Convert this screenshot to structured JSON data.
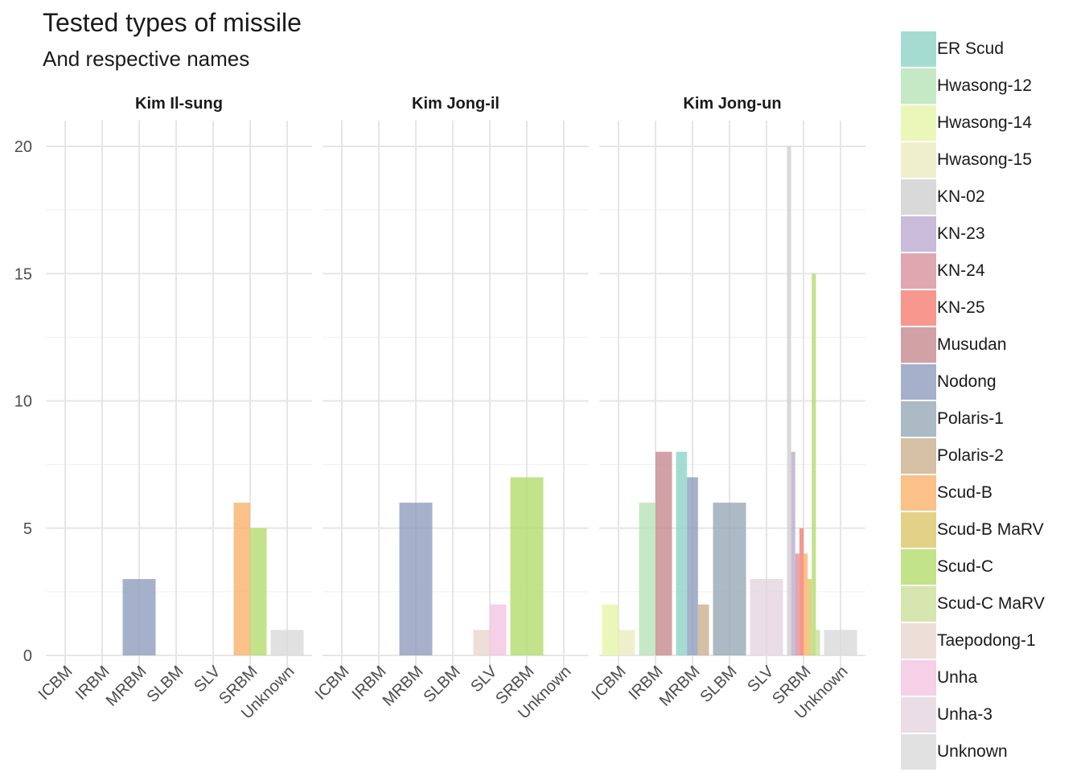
{
  "chart_data": {
    "type": "bar",
    "title": "Tested types of missile",
    "subtitle": "And respective names",
    "xlabel": "",
    "ylabel": "",
    "ylim": [
      0,
      21.3
    ],
    "yticks": [
      0,
      5,
      10,
      15,
      20
    ],
    "grid": true,
    "legend_position": "right",
    "categories": [
      "ICBM",
      "IRBM",
      "MRBM",
      "SLBM",
      "SLV",
      "SRBM",
      "Unknown"
    ],
    "panels": [
      {
        "name": "Kim Il-sung",
        "bars": [
          {
            "category": "MRBM",
            "series": "Nodong",
            "value": 3
          },
          {
            "category": "SRBM",
            "series": "Scud-B",
            "value": 6
          },
          {
            "category": "SRBM",
            "series": "Scud-C",
            "value": 5
          },
          {
            "category": "Unknown",
            "series": "Unknown",
            "value": 1
          }
        ]
      },
      {
        "name": "Kim Jong-il",
        "bars": [
          {
            "category": "MRBM",
            "series": "Nodong",
            "value": 6
          },
          {
            "category": "SLV",
            "series": "Taepodong-1",
            "value": 1
          },
          {
            "category": "SLV",
            "series": "Unha",
            "value": 2
          },
          {
            "category": "SRBM",
            "series": "Scud-C",
            "value": 7
          }
        ]
      },
      {
        "name": "Kim Jong-un",
        "bars": [
          {
            "category": "ICBM",
            "series": "Hwasong-14",
            "value": 2
          },
          {
            "category": "ICBM",
            "series": "Hwasong-15",
            "value": 1
          },
          {
            "category": "IRBM",
            "series": "Hwasong-12",
            "value": 6
          },
          {
            "category": "IRBM",
            "series": "Musudan",
            "value": 8
          },
          {
            "category": "MRBM",
            "series": "ER Scud",
            "value": 8
          },
          {
            "category": "MRBM",
            "series": "Nodong",
            "value": 7
          },
          {
            "category": "MRBM",
            "series": "Polaris-2",
            "value": 2
          },
          {
            "category": "SLBM",
            "series": "Polaris-1",
            "value": 6
          },
          {
            "category": "SLV",
            "series": "Unha-3",
            "value": 3
          },
          {
            "category": "SRBM",
            "series": "KN-02",
            "value": 20
          },
          {
            "category": "SRBM",
            "series": "KN-23",
            "value": 8
          },
          {
            "category": "SRBM",
            "series": "KN-24",
            "value": 4
          },
          {
            "category": "SRBM",
            "series": "KN-25",
            "value": 5
          },
          {
            "category": "SRBM",
            "series": "Scud-B",
            "value": 4
          },
          {
            "category": "SRBM",
            "series": "Scud-B MaRV",
            "value": 3
          },
          {
            "category": "SRBM",
            "series": "Scud-C",
            "value": 15
          },
          {
            "category": "SRBM",
            "series": "Scud-C MaRV",
            "value": 1
          },
          {
            "category": "Unknown",
            "series": "Unknown",
            "value": 1
          }
        ]
      }
    ],
    "legend": [
      {
        "name": "ER Scud",
        "color": "#8dd3c7"
      },
      {
        "name": "Hwasong-12",
        "color": "#b7e3b7"
      },
      {
        "name": "Hwasong-14",
        "color": "#e6f5a8"
      },
      {
        "name": "Hwasong-15",
        "color": "#ebebc0"
      },
      {
        "name": "KN-02",
        "color": "#cfcfcf"
      },
      {
        "name": "KN-23",
        "color": "#bcaad0"
      },
      {
        "name": "KN-24",
        "color": "#d9919d"
      },
      {
        "name": "KN-25",
        "color": "#f57d70"
      },
      {
        "name": "Musudan",
        "color": "#c78990"
      },
      {
        "name": "Nodong",
        "color": "#8f9dbd"
      },
      {
        "name": "Polaris-1",
        "color": "#96a9b5"
      },
      {
        "name": "Polaris-2",
        "color": "#cbb08e"
      },
      {
        "name": "Scud-B",
        "color": "#f9b26a"
      },
      {
        "name": "Scud-B MaRV",
        "color": "#dcc569"
      },
      {
        "name": "Scud-C",
        "color": "#b3dc6c"
      },
      {
        "name": "Scud-C MaRV",
        "color": "#cdde9a"
      },
      {
        "name": "Taepodong-1",
        "color": "#e9d6cd"
      },
      {
        "name": "Unha",
        "color": "#f3c4e1"
      },
      {
        "name": "Unha-3",
        "color": "#e5d4e0"
      },
      {
        "name": "Unknown",
        "color": "#d9d9d9"
      }
    ]
  }
}
